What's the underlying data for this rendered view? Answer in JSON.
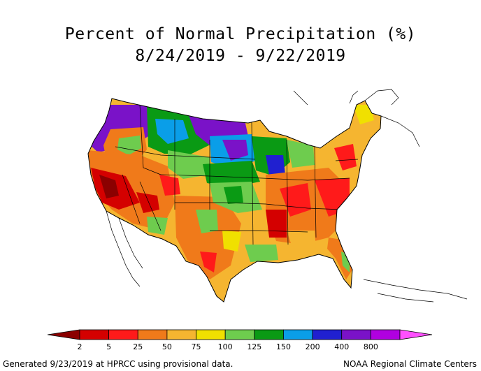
{
  "title": {
    "line1": "Percent of Normal Precipitation (%)",
    "line2": "8/24/2019 - 9/22/2019"
  },
  "legend": {
    "tick_labels": [
      "2",
      "5",
      "25",
      "50",
      "75",
      "100",
      "125",
      "150",
      "200",
      "400",
      "800"
    ],
    "colors": [
      "#8b0000",
      "#d40000",
      "#ff1a1a",
      "#f07a1a",
      "#f5b530",
      "#f0e000",
      "#6ecc4e",
      "#0a9a14",
      "#0a9ee8",
      "#2020d0",
      "#7a12c8",
      "#b000e0",
      "#ff50ff"
    ]
  },
  "footer": {
    "left": "Generated 9/23/2019 at HPRCC using provisional data.",
    "right": "NOAA Regional Climate Centers"
  }
}
